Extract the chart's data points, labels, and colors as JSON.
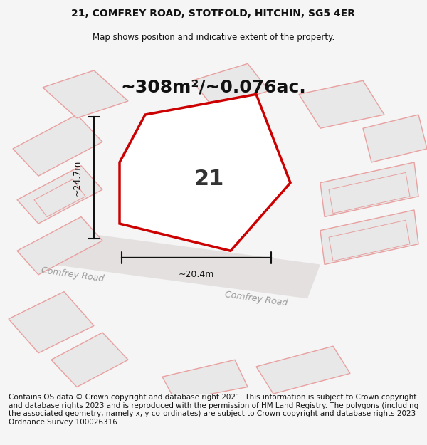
{
  "title_line1": "21, COMFREY ROAD, STOTFOLD, HITCHIN, SG5 4ER",
  "title_line2": "Map shows position and indicative extent of the property.",
  "area_text": "~308m²/~0.076ac.",
  "plot_number": "21",
  "dim_vertical": "~24.7m",
  "dim_horizontal": "~20.4m",
  "road_label1": "Comfrey Road",
  "road_label2": "Comfrey Road",
  "footer_text": "Contains OS data © Crown copyright and database right 2021. This information is subject to Crown copyright and database rights 2023 and is reproduced with the permission of HM Land Registry. The polygons (including the associated geometry, namely x, y co-ordinates) are subject to Crown copyright and database rights 2023 Ordnance Survey 100026316.",
  "bg_color": "#f5f5f5",
  "map_bg": "#f0eeee",
  "plot_fill": "#ffffff",
  "plot_edge": "#cc0000",
  "other_plot_edge": "#e8a0a0",
  "other_plot_fill": "#e8e8e8",
  "road_color": "#e8e8e8",
  "title_fontsize": 10,
  "footer_fontsize": 7.5
}
